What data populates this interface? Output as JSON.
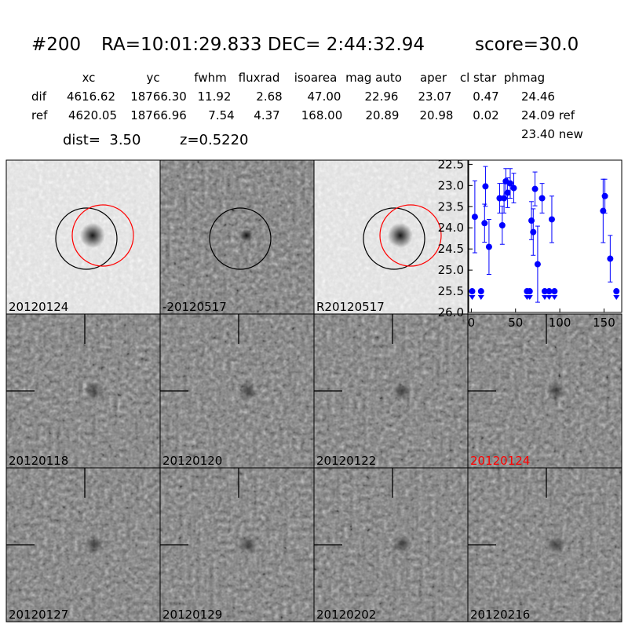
{
  "header": {
    "id": "#200",
    "coords": "RA=10:01:29.833 DEC= 2:44:32.94",
    "score": "score=30.0"
  },
  "table": {
    "columns": [
      "xc",
      "yc",
      "fwhm",
      "fluxrad",
      "isoarea",
      "mag auto",
      "aper",
      "cl star",
      "phmag"
    ],
    "rows": [
      {
        "label": "dif",
        "cells": [
          "4616.62",
          "18766.30",
          "11.92",
          "2.68",
          "47.00",
          "22.96",
          "23.07",
          "0.47",
          "24.46"
        ]
      },
      {
        "label": "ref",
        "cells": [
          "4620.05",
          "18766.96",
          "7.54",
          "4.37",
          "168.00",
          "20.89",
          "20.98",
          "0.02",
          "24.09 ref"
        ]
      }
    ],
    "extra": "23.40 new"
  },
  "summary": {
    "dist": "dist=  3.50",
    "z": "z=0.5220"
  },
  "panels": [
    "20120124",
    "-20120517",
    "R20120517",
    "20120118",
    "20120120",
    "20120122",
    "20120124",
    "20120127",
    "20120129",
    "20120202",
    "20120216"
  ],
  "chart_data": {
    "type": "scatter",
    "xlim": [
      -3,
      170
    ],
    "ylim": [
      26.0,
      22.4
    ],
    "xticks": [
      0,
      50,
      100,
      150
    ],
    "yticks": [
      22.5,
      {
        "value": 23,
        "label": "23.0"
      },
      23.5,
      {
        "value": 24,
        "label": "24.0"
      },
      24.5,
      {
        "value": 25,
        "label": "25.0"
      },
      25.5,
      {
        "value": 26,
        "label": "26.0"
      }
    ],
    "series": [
      {
        "color": "#0000ff",
        "x": [
          4,
          15,
          16,
          20,
          32,
          35,
          37,
          39,
          41,
          44,
          48,
          68,
          70,
          72,
          75,
          80,
          91,
          149,
          151,
          157
        ],
        "values": [
          23.74,
          23.89,
          23.02,
          24.45,
          23.3,
          23.94,
          23.3,
          22.9,
          23.17,
          22.95,
          23.06,
          23.83,
          24.1,
          23.08,
          24.86,
          23.3,
          23.8,
          23.6,
          23.25,
          24.73
        ],
        "errors": [
          0.85,
          0.45,
          0.47,
          0.65,
          0.35,
          0.45,
          0.35,
          0.3,
          0.35,
          0.35,
          0.35,
          0.45,
          0.55,
          0.4,
          0.9,
          0.35,
          0.55,
          0.75,
          0.4,
          0.55
        ]
      },
      {
        "color": "#0000ff",
        "x": [
          1,
          11,
          63,
          66,
          83,
          88,
          94,
          164
        ],
        "values": [
          25.5,
          25.5,
          25.5,
          25.5,
          25.5,
          25.5,
          25.5,
          25.5
        ]
      }
    ]
  }
}
